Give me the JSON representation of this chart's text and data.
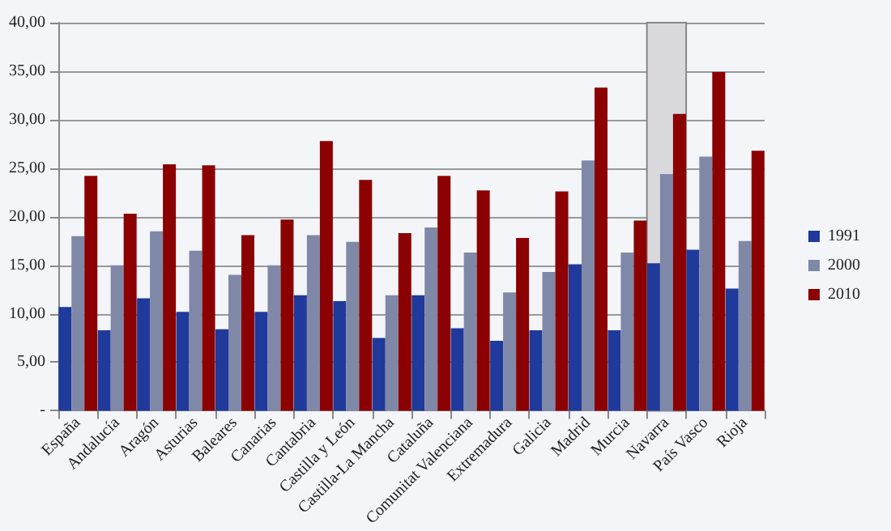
{
  "chart_data": {
    "type": "bar",
    "categories": [
      "España",
      "Andalucía",
      "Aragón",
      "Asturias",
      "Baleares",
      "Canarias",
      "Cantabria",
      "Castilla y León",
      "Castilla-La Mancha",
      "Cataluña",
      "Comunitat Valenciana",
      "Extremadura",
      "Galicia",
      "Madrid",
      "Murcia",
      "Navarra",
      "País Vasco",
      "Rioja"
    ],
    "series": [
      {
        "name": "1991",
        "color": "#1f3a9a",
        "values": [
          10.7,
          8.3,
          11.6,
          10.2,
          8.4,
          10.2,
          11.9,
          11.3,
          7.5,
          11.9,
          8.5,
          7.2,
          8.3,
          15.1,
          8.3,
          15.2,
          16.6,
          12.6
        ]
      },
      {
        "name": "2000",
        "color": "#8088a8",
        "values": [
          18.0,
          15.0,
          18.5,
          16.5,
          14.0,
          15.0,
          18.1,
          17.4,
          11.9,
          18.9,
          16.3,
          12.2,
          14.3,
          25.8,
          16.3,
          24.4,
          26.2,
          17.5
        ]
      },
      {
        "name": "2010",
        "color": "#8b0000",
        "values": [
          24.2,
          20.3,
          25.4,
          25.3,
          18.1,
          19.7,
          27.8,
          23.8,
          18.3,
          24.2,
          22.7,
          17.8,
          22.6,
          33.3,
          19.6,
          30.6,
          34.9,
          26.8
        ]
      }
    ],
    "ylim": [
      0,
      40
    ],
    "yticks": [
      {
        "value": 0,
        "label": "-"
      },
      {
        "value": 5,
        "label": "5,00"
      },
      {
        "value": 10,
        "label": "10,00"
      },
      {
        "value": 15,
        "label": "15,00"
      },
      {
        "value": 20,
        "label": "20,00"
      },
      {
        "value": 25,
        "label": "25,00"
      },
      {
        "value": 30,
        "label": "30,00"
      },
      {
        "value": 35,
        "label": "35,00"
      },
      {
        "value": 40,
        "label": "40,00"
      }
    ],
    "bands": [
      {
        "axis": "x",
        "from": "Navarra",
        "to": "Navarra",
        "color": "#d9d9de"
      }
    ],
    "grid": "y",
    "legend": "right"
  }
}
